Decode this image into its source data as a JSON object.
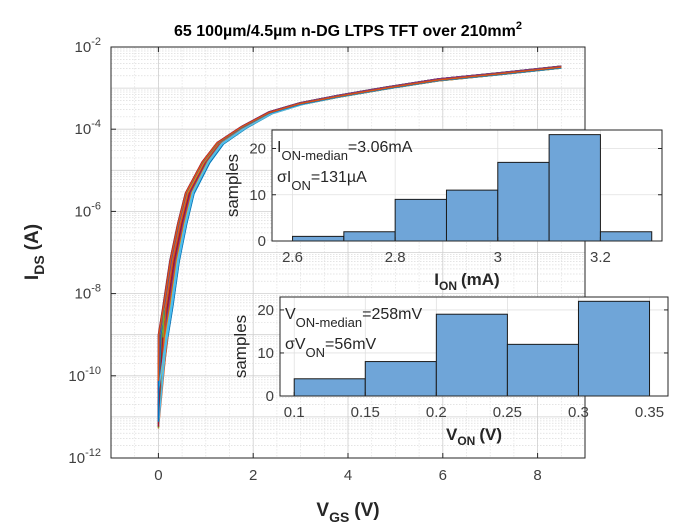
{
  "chart_data": [
    {
      "id": "main",
      "type": "line",
      "title": "65 100µm/4.5µm n-DG LTPS TFT over 210mm",
      "title_sup": "2",
      "xlabel": "V",
      "xlabel_sub": "GS",
      "xlabel_unit": "(V)",
      "ylabel": "I",
      "ylabel_sub": "DS",
      "ylabel_unit": "(A)",
      "xlim": [
        -1,
        9
      ],
      "ylim": [
        1e-12,
        0.01
      ],
      "yscale": "log",
      "grid": true,
      "minor_grid": true,
      "xticks": [
        0,
        2,
        4,
        6,
        8
      ],
      "xtick_labels": [
        "0",
        "2",
        "4",
        "6",
        "8"
      ],
      "yticks_exp": [
        -2,
        -4,
        -6,
        -8,
        -10,
        -12
      ],
      "ytick_base": "10",
      "n_curves": 65,
      "representative_curve": {
        "vgs": [
          0.0,
          0.1,
          0.2,
          0.34,
          0.5,
          0.66,
          1.0,
          1.3,
          1.8,
          2.36,
          3.0,
          3.79,
          4.8,
          5.9,
          7.2,
          8.5
        ],
        "log10_ids": [
          -9.8,
          -9.0,
          -8.3,
          -7.2,
          -6.3,
          -5.55,
          -4.8,
          -4.34,
          -3.95,
          -3.6,
          -3.38,
          -3.2,
          -3.0,
          -2.8,
          -2.65,
          -2.49
        ]
      },
      "curve_colors": [
        "#0072BD",
        "#D95319",
        "#EDB120",
        "#7E2F8E",
        "#77AC30",
        "#4DBEEE",
        "#A2142F"
      ]
    },
    {
      "id": "inset-ion",
      "type": "bar",
      "xlabel": "I",
      "xlabel_sub": "ON",
      "xlabel_unit": "(mA)",
      "ylabel": "samples",
      "xlim": [
        2.56,
        3.32
      ],
      "ylim": [
        0,
        24
      ],
      "xticks": [
        2.6,
        2.8,
        3.0,
        3.2
      ],
      "xtick_labels": [
        "2.6",
        "2.8",
        "3",
        "3.2"
      ],
      "yticks": [
        0,
        10,
        20
      ],
      "ytick_labels": [
        "0",
        "10",
        "20"
      ],
      "bin_edges": [
        2.6,
        2.7,
        2.8,
        2.9,
        3.0,
        3.1,
        3.2,
        3.3
      ],
      "values": [
        1,
        2,
        9,
        11,
        17,
        23,
        2
      ],
      "bar_color": "#6FA5D8",
      "annotations": [
        {
          "main": "I",
          "sub": "ON-median",
          "rest": "=3.06mA"
        },
        {
          "main": "σI",
          "sub": "ON",
          "rest": "=131µA"
        }
      ]
    },
    {
      "id": "inset-von",
      "type": "bar",
      "xlabel": "V",
      "xlabel_sub": "ON",
      "xlabel_unit": "(V)",
      "ylabel": "samples",
      "xlim": [
        0.09,
        0.363
      ],
      "ylim": [
        0,
        23
      ],
      "xticks": [
        0.1,
        0.15,
        0.2,
        0.25,
        0.3,
        0.35
      ],
      "xtick_labels": [
        "0.1",
        "0.15",
        "0.2",
        "0.25",
        "0.3",
        "0.35"
      ],
      "yticks": [
        0,
        10,
        20
      ],
      "ytick_labels": [
        "0",
        "10",
        "20"
      ],
      "bin_edges": [
        0.1,
        0.15,
        0.2,
        0.25,
        0.3,
        0.35
      ],
      "values": [
        4,
        8,
        19,
        12,
        22
      ],
      "bar_color": "#6FA5D8",
      "annotations": [
        {
          "main": "V",
          "sub": "ON-median",
          "rest": "=258mV"
        },
        {
          "main": "σV",
          "sub": "ON",
          "rest": "=56mV"
        }
      ]
    }
  ]
}
